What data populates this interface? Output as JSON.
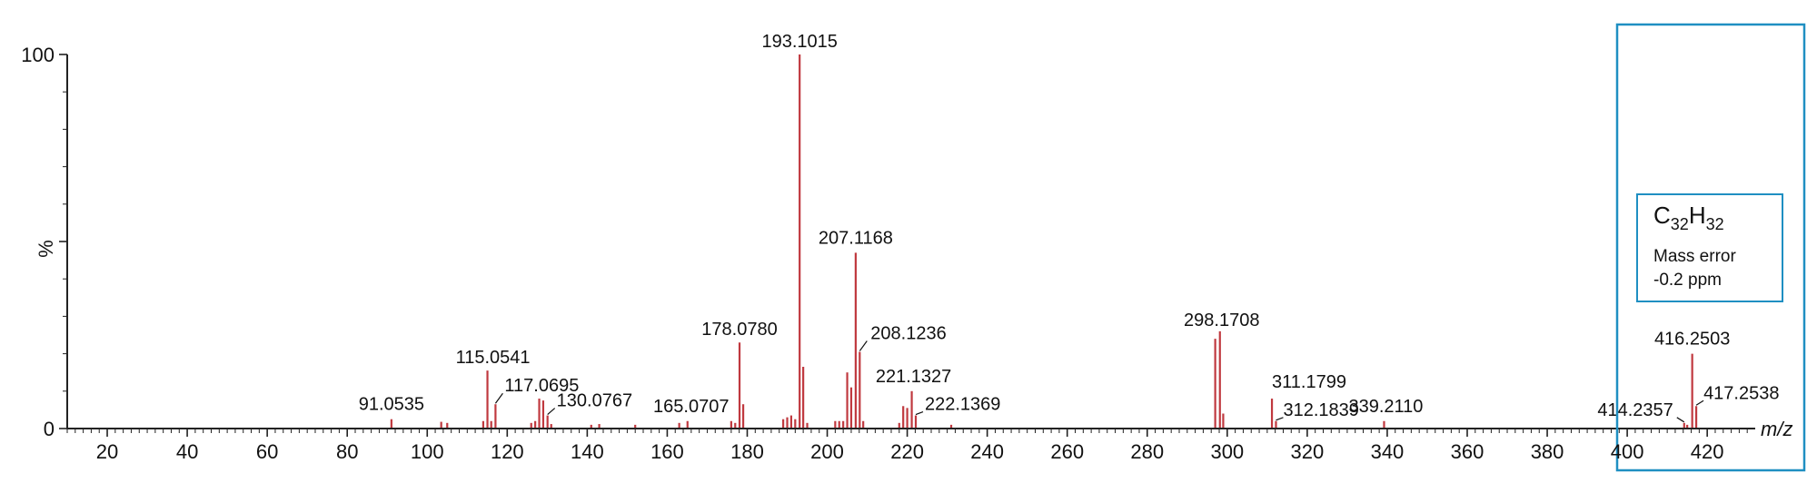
{
  "chart_data": {
    "type": "bar",
    "xlabel": "m/z",
    "ylabel": "%",
    "xlim": [
      10,
      432
    ],
    "ylim": [
      0,
      100
    ],
    "x_ticks": [
      20,
      40,
      60,
      80,
      100,
      120,
      140,
      160,
      180,
      200,
      220,
      240,
      260,
      280,
      300,
      320,
      340,
      360,
      380,
      400,
      420
    ],
    "y_ticks": [
      0,
      100
    ],
    "colors": {
      "peaks": "#c0393f",
      "box": "#1f8fc2",
      "axis": "#222222"
    },
    "peaks": [
      {
        "mz": 91.0535,
        "intensity": 2.5,
        "label": "91.0535"
      },
      {
        "mz": 103.5,
        "intensity": 1.8
      },
      {
        "mz": 105.0,
        "intensity": 1.5
      },
      {
        "mz": 114.0,
        "intensity": 2.0
      },
      {
        "mz": 115.0541,
        "intensity": 15.5,
        "label": "115.0541"
      },
      {
        "mz": 116.0,
        "intensity": 2.0
      },
      {
        "mz": 117.0695,
        "intensity": 6.5,
        "label": "117.0695"
      },
      {
        "mz": 126.0,
        "intensity": 1.5
      },
      {
        "mz": 127.0,
        "intensity": 2.0
      },
      {
        "mz": 128.0,
        "intensity": 8.0
      },
      {
        "mz": 129.0,
        "intensity": 7.5
      },
      {
        "mz": 130.0767,
        "intensity": 3.5,
        "label": "130.0767"
      },
      {
        "mz": 131.0,
        "intensity": 1.2
      },
      {
        "mz": 141.0,
        "intensity": 1.0
      },
      {
        "mz": 143.0,
        "intensity": 1.2
      },
      {
        "mz": 152.0,
        "intensity": 1.0
      },
      {
        "mz": 163.0,
        "intensity": 1.5
      },
      {
        "mz": 165.0707,
        "intensity": 2.0,
        "label": "165.0707"
      },
      {
        "mz": 176.0,
        "intensity": 2.0
      },
      {
        "mz": 177.0,
        "intensity": 1.5
      },
      {
        "mz": 178.078,
        "intensity": 23.0,
        "label": "178.0780"
      },
      {
        "mz": 179.0,
        "intensity": 6.5
      },
      {
        "mz": 189.0,
        "intensity": 2.5
      },
      {
        "mz": 190.0,
        "intensity": 3.0
      },
      {
        "mz": 191.0,
        "intensity": 3.5
      },
      {
        "mz": 192.0,
        "intensity": 2.5
      },
      {
        "mz": 193.1015,
        "intensity": 100,
        "label": "193.1015"
      },
      {
        "mz": 194.0,
        "intensity": 16.5
      },
      {
        "mz": 195.0,
        "intensity": 1.5
      },
      {
        "mz": 202.0,
        "intensity": 2.0
      },
      {
        "mz": 203.0,
        "intensity": 2.0
      },
      {
        "mz": 204.0,
        "intensity": 2.0
      },
      {
        "mz": 205.0,
        "intensity": 15.0
      },
      {
        "mz": 206.0,
        "intensity": 11.0
      },
      {
        "mz": 207.1168,
        "intensity": 47.0,
        "label": "207.1168"
      },
      {
        "mz": 208.1236,
        "intensity": 20.5,
        "label": "208.1236"
      },
      {
        "mz": 209.0,
        "intensity": 2.0
      },
      {
        "mz": 218.0,
        "intensity": 1.5
      },
      {
        "mz": 219.0,
        "intensity": 6.0
      },
      {
        "mz": 220.0,
        "intensity": 5.5
      },
      {
        "mz": 221.1327,
        "intensity": 10.0,
        "label": "221.1327"
      },
      {
        "mz": 222.1369,
        "intensity": 3.5,
        "label": "222.1369"
      },
      {
        "mz": 231.0,
        "intensity": 1.0
      },
      {
        "mz": 297.0,
        "intensity": 24.0
      },
      {
        "mz": 298.1708,
        "intensity": 26.0,
        "label": "298.1708"
      },
      {
        "mz": 299.0,
        "intensity": 4.0
      },
      {
        "mz": 311.1799,
        "intensity": 8.0,
        "label": "311.1799"
      },
      {
        "mz": 312.1839,
        "intensity": 2.0,
        "label": "312.1839"
      },
      {
        "mz": 339.211,
        "intensity": 2.0,
        "label": "339.2110"
      },
      {
        "mz": 414.2357,
        "intensity": 1.5,
        "label": "414.2357"
      },
      {
        "mz": 415.0,
        "intensity": 1.0
      },
      {
        "mz": 416.2503,
        "intensity": 20.0,
        "label": "416.2503"
      },
      {
        "mz": 417.2538,
        "intensity": 6.0,
        "label": "417.2538"
      }
    ],
    "annotation": {
      "formula_element_1": "C",
      "formula_sub_1": "32",
      "formula_element_2": "H",
      "formula_sub_2": "32",
      "line1": "Mass error",
      "line2": "-0.2 ppm"
    }
  }
}
